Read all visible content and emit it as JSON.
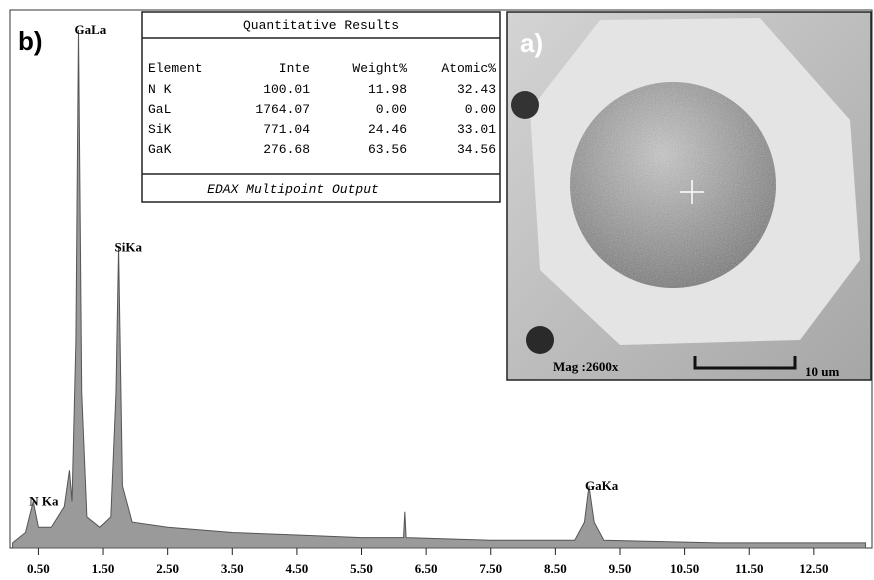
{
  "panel_label": "b)",
  "chart_data": {
    "type": "area",
    "x": [
      0.1,
      0.3,
      0.42,
      0.5,
      0.7,
      0.9,
      0.98,
      1.02,
      1.08,
      1.12,
      1.17,
      1.25,
      1.45,
      1.62,
      1.7,
      1.74,
      1.8,
      1.95,
      2.5,
      3.5,
      4.5,
      5.5,
      6.15,
      6.17,
      6.19,
      7.5,
      8.8,
      8.95,
      9.02,
      9.1,
      9.25,
      11,
      13.3
    ],
    "values": [
      1,
      3,
      9,
      4,
      4,
      8,
      15,
      9,
      40,
      100,
      30,
      6,
      4,
      6,
      30,
      58,
      12,
      5,
      4,
      3,
      2.5,
      2,
      2,
      7,
      2,
      1.5,
      1.5,
      5,
      12,
      5,
      1.5,
      1,
      1
    ],
    "color": "#9a9a9a",
    "xlim": [
      0.06,
      13.4
    ],
    "ylim": [
      0,
      100
    ],
    "xticks": [
      {
        "value": 0.5,
        "label": "0.50"
      },
      {
        "value": 1.5,
        "label": "1.50"
      },
      {
        "value": 2.5,
        "label": "2.50"
      },
      {
        "value": 3.5,
        "label": "3.50"
      },
      {
        "value": 4.5,
        "label": "4.50"
      },
      {
        "value": 5.5,
        "label": "5.50"
      },
      {
        "value": 6.5,
        "label": "6.50"
      },
      {
        "value": 7.5,
        "label": "7.50"
      },
      {
        "value": 8.5,
        "label": "8.50"
      },
      {
        "value": 9.5,
        "label": "9.50"
      },
      {
        "value": 10.5,
        "label": "10.50"
      },
      {
        "value": 11.5,
        "label": "11.50"
      },
      {
        "value": 12.5,
        "label": "12.50"
      }
    ],
    "annotations": [
      {
        "text": "N Ka",
        "x": 0.42,
        "y": 9
      },
      {
        "text": "GaLa",
        "x": 1.12,
        "y": 100
      },
      {
        "text": "SiKa",
        "x": 1.74,
        "y": 58
      },
      {
        "text": "GaKa",
        "x": 9.02,
        "y": 12
      }
    ]
  },
  "table": {
    "title": "Quantitative Results",
    "columns": [
      "Element",
      "Inte",
      "Weight%",
      "Atomic%"
    ],
    "rows": [
      [
        "N K",
        "100.01",
        "11.98",
        "32.43"
      ],
      [
        "GaL",
        "1764.07",
        "0.00",
        "0.00"
      ],
      [
        "SiK",
        "771.04",
        "24.46",
        "33.01"
      ],
      [
        "GaK",
        "276.68",
        "63.56",
        "34.56"
      ]
    ],
    "footer": "EDAX Multipoint Output"
  },
  "image": {
    "label": "a)",
    "magnification": "Mag :2600x",
    "scale_bar": "10 um"
  }
}
